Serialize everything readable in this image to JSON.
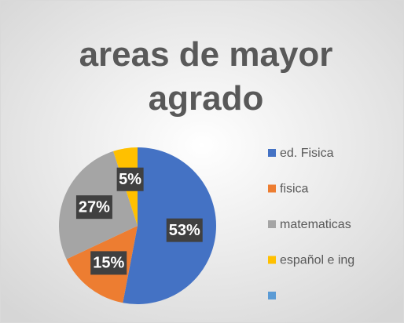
{
  "chart_data": {
    "type": "pie",
    "title": "areas de mayor agrado",
    "categories": [
      "ed. Fisica",
      "fisica",
      "matematicas",
      "español e ing",
      null
    ],
    "values": [
      53,
      15,
      27,
      5,
      null
    ],
    "value_labels": [
      "53%",
      "15%",
      "27%",
      "5%",
      null
    ],
    "colors": [
      "#4472c4",
      "#ed7d31",
      "#a5a5a5",
      "#ffc000",
      "#5b9bd5"
    ],
    "legend": "right"
  }
}
